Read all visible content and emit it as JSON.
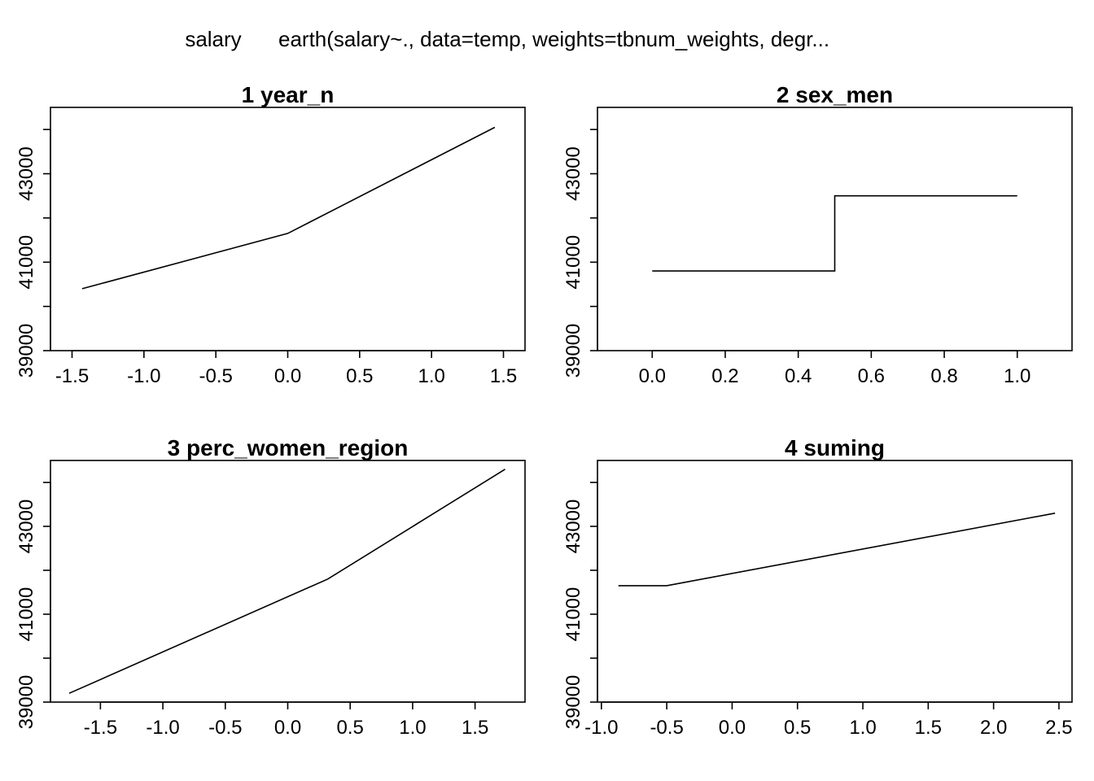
{
  "figure": {
    "title_response": "salary",
    "title_call": "earth(salary~., data=temp, weights=tbnum_weights, degr..."
  },
  "chart_data": [
    {
      "type": "line",
      "title": "1  year_n",
      "xlabel": "",
      "ylabel": "",
      "xlim": [
        -1.65,
        1.65
      ],
      "ylim": [
        39000,
        44500
      ],
      "xticks": [
        -1.5,
        -1.0,
        -0.5,
        0.0,
        0.5,
        1.0,
        1.5
      ],
      "xtick_labels": [
        "-1.5",
        "-1.0",
        "-0.5",
        "0.0",
        "0.5",
        "1.0",
        "1.5"
      ],
      "yticks": [
        39000,
        40000,
        41000,
        42000,
        43000,
        44000
      ],
      "ytick_labels": [
        "39000",
        "",
        "41000",
        "",
        "43000",
        ""
      ],
      "series": [
        {
          "x": [
            -1.43,
            0.0,
            1.44
          ],
          "y": [
            40400,
            41650,
            44050
          ]
        }
      ]
    },
    {
      "type": "line",
      "title": "2  sex_men",
      "xlabel": "",
      "ylabel": "",
      "xlim": [
        -0.15,
        1.15
      ],
      "ylim": [
        39000,
        44500
      ],
      "xticks": [
        0.0,
        0.2,
        0.4,
        0.6,
        0.8,
        1.0
      ],
      "xtick_labels": [
        "0.0",
        "0.2",
        "0.4",
        "0.6",
        "0.8",
        "1.0"
      ],
      "yticks": [
        39000,
        40000,
        41000,
        42000,
        43000,
        44000
      ],
      "ytick_labels": [
        "39000",
        "",
        "41000",
        "",
        "43000",
        ""
      ],
      "series": [
        {
          "x": [
            0.0,
            0.5,
            0.5,
            1.0
          ],
          "y": [
            40800,
            40800,
            42500,
            42500
          ]
        }
      ]
    },
    {
      "type": "line",
      "title": "3  perc_women_region",
      "xlabel": "",
      "ylabel": "",
      "xlim": [
        -1.9,
        1.9
      ],
      "ylim": [
        39000,
        44500
      ],
      "xticks": [
        -1.5,
        -1.0,
        -0.5,
        0.0,
        0.5,
        1.0,
        1.5
      ],
      "xtick_labels": [
        "-1.5",
        "-1.0",
        "-0.5",
        "0.0",
        "0.5",
        "1.0",
        "1.5"
      ],
      "yticks": [
        39000,
        40000,
        41000,
        42000,
        43000,
        44000
      ],
      "ytick_labels": [
        "39000",
        "",
        "41000",
        "",
        "43000",
        ""
      ],
      "series": [
        {
          "x": [
            -1.75,
            0.32,
            1.74
          ],
          "y": [
            39200,
            41800,
            44300
          ]
        }
      ]
    },
    {
      "type": "line",
      "title": "4  suming",
      "xlabel": "",
      "ylabel": "",
      "xlim": [
        -1.03,
        2.6
      ],
      "ylim": [
        39000,
        44500
      ],
      "xticks": [
        -1.0,
        -0.5,
        0.0,
        0.5,
        1.0,
        1.5,
        2.0,
        2.5
      ],
      "xtick_labels": [
        "-1.0",
        "-0.5",
        "0.0",
        "0.5",
        "1.0",
        "1.5",
        "2.0",
        "2.5"
      ],
      "yticks": [
        39000,
        40000,
        41000,
        42000,
        43000,
        44000
      ],
      "ytick_labels": [
        "39000",
        "",
        "41000",
        "",
        "43000",
        ""
      ],
      "series": [
        {
          "x": [
            -0.87,
            -0.5,
            2.47
          ],
          "y": [
            41650,
            41650,
            43300
          ]
        }
      ]
    }
  ]
}
